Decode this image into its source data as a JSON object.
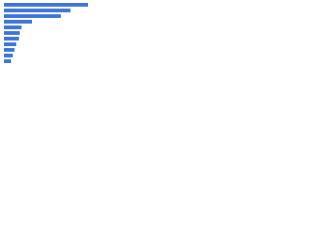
{
  "chart_data": {
    "type": "bar",
    "orientation": "horizontal",
    "categories": [
      null,
      null,
      null,
      null,
      null,
      null,
      null,
      null,
      null,
      null,
      null
    ],
    "values": [
      96,
      76,
      65,
      32,
      20,
      18,
      17,
      14,
      12,
      10,
      8
    ],
    "color": "#3d74d6"
  }
}
